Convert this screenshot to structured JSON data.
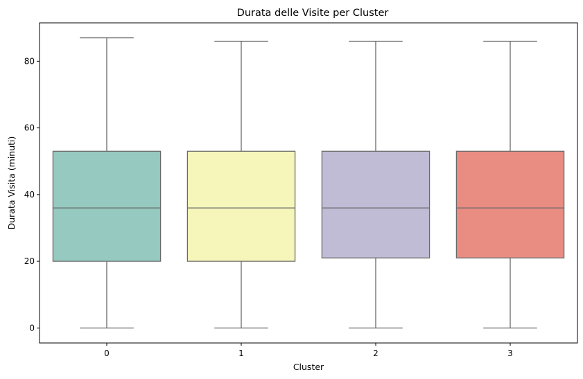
{
  "chart_data": {
    "type": "box",
    "title": "Durata delle Visite per Cluster",
    "xlabel": "Cluster",
    "ylabel": "Durata Visita (minuti)",
    "ylim": [
      -4.5,
      91.5
    ],
    "yticks": [
      0,
      20,
      40,
      60,
      80
    ],
    "grid": false,
    "categories": [
      "0",
      "1",
      "2",
      "3"
    ],
    "boxes": [
      {
        "whisker_low": 0,
        "q1": 20,
        "median": 36,
        "q3": 53,
        "whisker_high": 87,
        "color": "#96c9c0"
      },
      {
        "whisker_low": 0,
        "q1": 20,
        "median": 36,
        "q3": 53,
        "whisker_high": 86,
        "color": "#f6f6bb"
      },
      {
        "whisker_low": 0,
        "q1": 21,
        "median": 36,
        "q3": 53,
        "whisker_high": 86,
        "color": "#c0bcd6"
      },
      {
        "whisker_low": 0,
        "q1": 21,
        "median": 36,
        "q3": 53,
        "whisker_high": 86,
        "color": "#e98d82"
      }
    ],
    "line_color": "#6a6a6a"
  }
}
